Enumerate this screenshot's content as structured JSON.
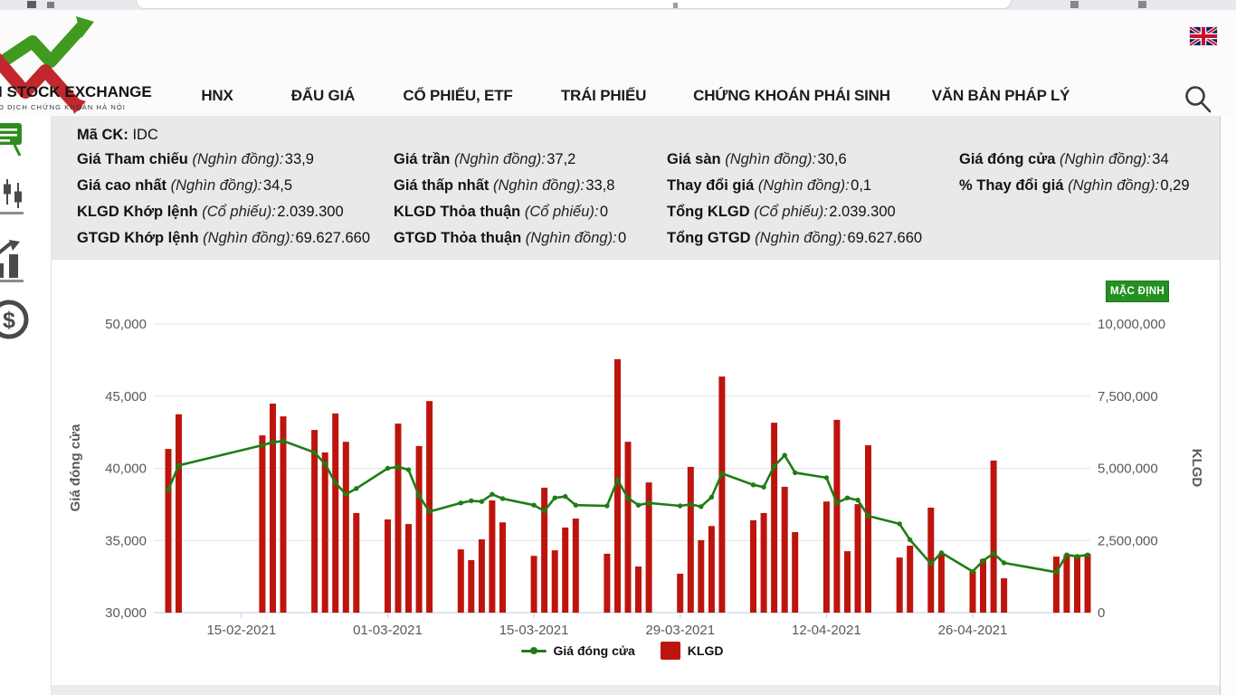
{
  "header": {
    "logo_text_top": "I STOCK EXCHANGE",
    "logo_text_bottom": "O DỊCH CHỨNG KHOÁN HÀ NỘI",
    "nav_items": [
      {
        "label": "HNX"
      },
      {
        "label": "ĐẤU GIÁ"
      },
      {
        "label": "CỔ PHIẾU, ETF"
      },
      {
        "label": "TRÁI PHIẾU"
      },
      {
        "label": "CHỨNG KHOÁN PHÁI SINH"
      },
      {
        "label": "VĂN BẢN PHÁP LÝ"
      }
    ],
    "icons": [
      "hnx-logo",
      "uk-flag-icon",
      "search-icon"
    ]
  },
  "sidebar": {
    "items": [
      {
        "icon": "presentation-board-icon",
        "active": true,
        "color": "#2f8d1f"
      },
      {
        "icon": "candlestick-chart-icon",
        "active": false,
        "color": "#4a4a4a"
      },
      {
        "icon": "bar-chart-arrow-icon",
        "active": false,
        "color": "#4a4a4a"
      },
      {
        "icon": "dollar-coin-icon",
        "active": false,
        "color": "#4a4a4a"
      }
    ]
  },
  "stock_info": {
    "symbol_label": "Mã CK:",
    "symbol": "IDC",
    "columns": [
      [
        {
          "label": "Giá Tham chiếu",
          "unit": "(Nghìn đồng):",
          "value": "33,9"
        },
        {
          "label": "Giá cao nhất",
          "unit": "(Nghìn đồng):",
          "value": "34,5"
        },
        {
          "label": "KLGD Khớp lệnh",
          "unit": "(Cổ phiếu):",
          "value": "2.039.300"
        },
        {
          "label": "GTGD Khớp lệnh",
          "unit": "(Nghìn đồng):",
          "value": "69.627.660"
        }
      ],
      [
        {
          "label": "Giá trần",
          "unit": "(Nghìn đồng):",
          "value": "37,2"
        },
        {
          "label": "Giá thấp nhất",
          "unit": "(Nghìn đồng):",
          "value": "33,8"
        },
        {
          "label": "KLGD Thỏa thuận",
          "unit": "(Cổ phiếu):",
          "value": "0"
        },
        {
          "label": "GTGD Thỏa thuận",
          "unit": "(Nghìn đồng):",
          "value": "0"
        }
      ],
      [
        {
          "label": "Giá sàn",
          "unit": "(Nghìn đồng):",
          "value": "30,6"
        },
        {
          "label": "Thay đổi giá",
          "unit": "(Nghìn đồng):",
          "value": "0,1"
        },
        {
          "label": "Tổng KLGD",
          "unit": "(Cổ phiếu):",
          "value": "2.039.300"
        },
        {
          "label": "Tổng GTGD",
          "unit": "(Nghìn đồng):",
          "value": "69.627.660"
        }
      ],
      [
        {
          "label": "Giá đóng cửa",
          "unit": "(Nghìn đồng):",
          "value": "34"
        },
        {
          "label": "% Thay đổi giá",
          "unit": "(Nghìn đồng):",
          "value": "0,29"
        }
      ]
    ]
  },
  "chart": {
    "default_button_label": "MẶC ĐỊNH"
  },
  "chart_data": {
    "type": "line+bar",
    "title": "",
    "x_dates": [
      "08-02-2021",
      "09-02-2021",
      "17-02-2021",
      "18-02-2021",
      "19-02-2021",
      "22-02-2021",
      "23-02-2021",
      "24-02-2021",
      "25-02-2021",
      "26-02-2021",
      "01-03-2021",
      "02-03-2021",
      "03-03-2021",
      "04-03-2021",
      "05-03-2021",
      "08-03-2021",
      "09-03-2021",
      "10-03-2021",
      "11-03-2021",
      "12-03-2021",
      "15-03-2021",
      "16-03-2021",
      "17-03-2021",
      "18-03-2021",
      "19-03-2021",
      "22-03-2021",
      "23-03-2021",
      "24-03-2021",
      "25-03-2021",
      "26-03-2021",
      "29-03-2021",
      "30-03-2021",
      "31-03-2021",
      "01-04-2021",
      "02-04-2021",
      "05-04-2021",
      "06-04-2021",
      "07-04-2021",
      "08-04-2021",
      "09-04-2021",
      "12-04-2021",
      "13-04-2021",
      "14-04-2021",
      "15-04-2021",
      "16-04-2021",
      "19-04-2021",
      "20-04-2021",
      "22-04-2021",
      "23-04-2021",
      "26-04-2021",
      "27-04-2021",
      "28-04-2021",
      "29-04-2021",
      "04-05-2021",
      "05-05-2021",
      "06-05-2021",
      "07-05-2021"
    ],
    "series": [
      {
        "name": "Giá đóng cửa",
        "type": "line",
        "axis": "left",
        "color": "#1e7d14",
        "values": [
          38500,
          40200,
          41600,
          41800,
          41900,
          41100,
          40300,
          39000,
          38200,
          38600,
          40000,
          40100,
          39900,
          38100,
          37000,
          37600,
          37750,
          37700,
          38200,
          37900,
          37450,
          37050,
          37950,
          38050,
          37450,
          37400,
          39200,
          37950,
          37450,
          37600,
          37400,
          37500,
          37350,
          38000,
          39650,
          38850,
          38700,
          40150,
          40900,
          39700,
          39350,
          37600,
          37950,
          37800,
          36700,
          36150,
          35050,
          33400,
          34150,
          32850,
          33600,
          34100,
          33450,
          32800,
          34000,
          33900,
          34000
        ]
      },
      {
        "name": "KLGD",
        "type": "bar",
        "axis": "right",
        "color": "#bd150d",
        "values": [
          5670000,
          6870000,
          6140000,
          7240000,
          6800000,
          6330000,
          5550000,
          6900000,
          5920000,
          3450000,
          3230000,
          6550000,
          3070000,
          5770000,
          7330000,
          2190000,
          1820000,
          2540000,
          3890000,
          3130000,
          1970000,
          4330000,
          2160000,
          2950000,
          3260000,
          2040000,
          8780000,
          5920000,
          1600000,
          4510000,
          1350000,
          5050000,
          2510000,
          3000000,
          8180000,
          3200000,
          3450000,
          6580000,
          4360000,
          2790000,
          3850000,
          6680000,
          2130000,
          3760000,
          5800000,
          1910000,
          2320000,
          3640000,
          2040000,
          1440000,
          1850000,
          5270000,
          1190000,
          1940000,
          2000000,
          1970000,
          2039300
        ]
      }
    ],
    "left_axis": {
      "label": "Giá đóng cửa",
      "min": 30000,
      "max": 50000,
      "ticks": [
        {
          "value": 30000,
          "label": "30,000"
        },
        {
          "value": 35000,
          "label": "35,000"
        },
        {
          "value": 40000,
          "label": "40,000"
        },
        {
          "value": 45000,
          "label": "45,000"
        },
        {
          "value": 50000,
          "label": "50,000"
        }
      ]
    },
    "right_axis": {
      "label": "KLGD",
      "min": 0,
      "max": 10000000,
      "ticks": [
        {
          "value": 0,
          "label": "0"
        },
        {
          "value": 2500000,
          "label": "2,500,000"
        },
        {
          "value": 5000000,
          "label": "5,000,000"
        },
        {
          "value": 7500000,
          "label": "7,500,000"
        },
        {
          "value": 10000000,
          "label": "10,000,000"
        }
      ]
    },
    "x_tick_labels": [
      "15-02-2021",
      "01-03-2021",
      "15-03-2021",
      "29-03-2021",
      "12-04-2021",
      "26-04-2021"
    ],
    "grid": true,
    "legend_position": "bottom"
  }
}
